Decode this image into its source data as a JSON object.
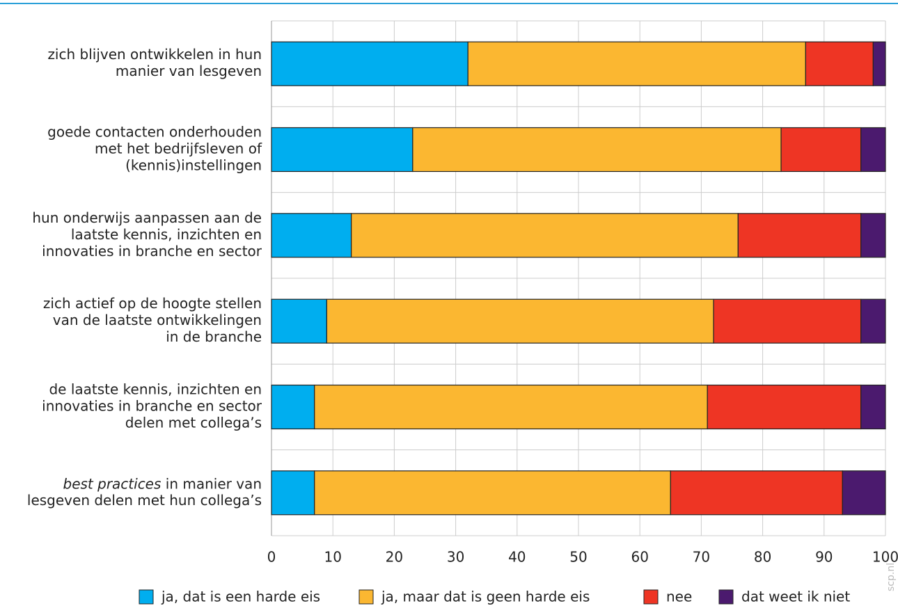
{
  "chart_data": {
    "type": "stacked-barh",
    "categories": [
      [
        "zich blijven ontwikkelen in hun",
        "manier van lesgeven"
      ],
      [
        "goede contacten onderhouden",
        "met het bedrijfsleven of",
        "(kennis)instellingen"
      ],
      [
        "hun onderwijs aanpassen aan de",
        "laatste kennis, inzichten en",
        "innovaties in branche en sector"
      ],
      [
        "zich actief op de hoogte stellen",
        "van de laatste ontwikkelingen",
        "in de branche"
      ],
      [
        "de laatste kennis, inzichten en",
        "innovaties in branche en sector",
        "delen met collega’s"
      ],
      [
        [
          "best practices",
          " in manier van"
        ],
        "lesgeven delen met hun collega’s"
      ]
    ],
    "series": [
      {
        "name": "ja, dat is een harde eis",
        "color": "#00aeef",
        "values": [
          32,
          23,
          13,
          9,
          7,
          7
        ]
      },
      {
        "name": "ja, maar dat is geen harde eis",
        "color": "#fbb731",
        "values": [
          55,
          60,
          63,
          63,
          64,
          58
        ]
      },
      {
        "name": "nee",
        "color": "#ee3524",
        "values": [
          11,
          13,
          20,
          24,
          25,
          28
        ]
      },
      {
        "name": "dat weet ik niet",
        "color": "#4b1a6e",
        "values": [
          2,
          4,
          4,
          4,
          4,
          7
        ]
      }
    ],
    "xlim": [
      0,
      100
    ],
    "xticks": [
      0,
      10,
      20,
      30,
      40,
      50,
      60,
      70,
      80,
      90,
      100
    ],
    "grid": true,
    "legend": "bottom",
    "source": "scp.nl"
  }
}
